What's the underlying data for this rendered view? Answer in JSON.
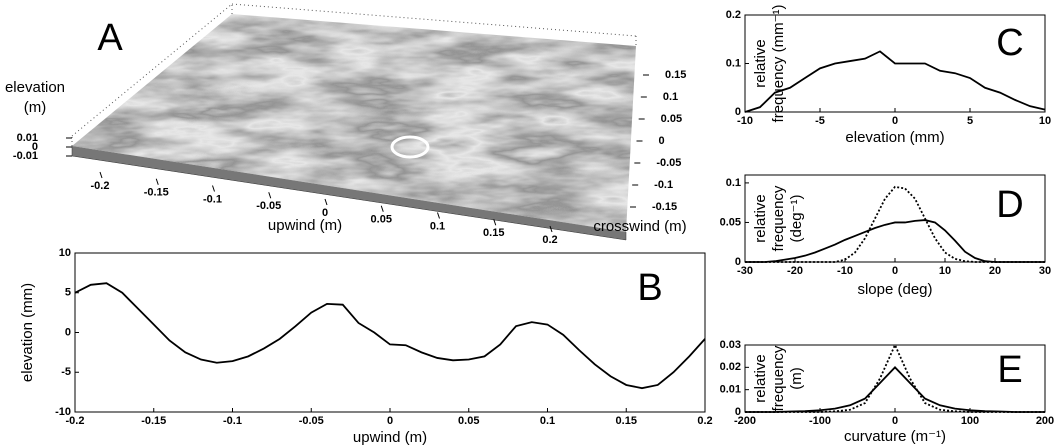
{
  "chart_data": [
    {
      "type": "surface3d",
      "label": "A",
      "xlabel": "upwind (m)",
      "ylabel": "crosswind (m)",
      "zlabel": [
        "elevation",
        "(m)"
      ],
      "xticks": [
        -0.2,
        -0.15,
        -0.1,
        -0.05,
        0,
        0.05,
        0.1,
        0.15,
        0.2
      ],
      "yticks": [
        -0.15,
        -0.1,
        -0.05,
        0,
        0.05,
        0.1,
        0.15
      ],
      "zticks": [
        -0.01,
        0,
        0.01
      ]
    },
    {
      "type": "line",
      "label": "B",
      "xlabel": "upwind (m)",
      "ylabel": "elevation (mm)",
      "xlim": [
        -0.2,
        0.2
      ],
      "xticks": [
        -0.2,
        -0.15,
        -0.1,
        -0.05,
        0,
        0.05,
        0.1,
        0.15,
        0.2
      ],
      "ylim": [
        -10,
        10
      ],
      "yticks": [
        -10,
        -5,
        0,
        5,
        10
      ],
      "x": [
        -0.2,
        -0.19,
        -0.18,
        -0.17,
        -0.16,
        -0.15,
        -0.14,
        -0.13,
        -0.12,
        -0.11,
        -0.1,
        -0.09,
        -0.08,
        -0.07,
        -0.06,
        -0.05,
        -0.04,
        -0.03,
        -0.02,
        -0.01,
        0,
        0.01,
        0.02,
        0.03,
        0.04,
        0.05,
        0.06,
        0.07,
        0.08,
        0.09,
        0.1,
        0.11,
        0.12,
        0.13,
        0.14,
        0.15,
        0.16,
        0.17,
        0.18,
        0.19,
        0.2
      ],
      "series": [
        {
          "color": "#000000",
          "dash": "solid",
          "values": [
            5,
            6,
            6.2,
            5,
            3,
            1,
            -1,
            -2.5,
            -3.4,
            -3.8,
            -3.6,
            -3,
            -2,
            -0.8,
            0.8,
            2.5,
            3.6,
            3.5,
            1.2,
            0,
            -1.5,
            -1.6,
            -2.5,
            -3.2,
            -3.5,
            -3.4,
            -3,
            -1.5,
            0.8,
            1.3,
            1,
            -0.3,
            -2.2,
            -4,
            -5.5,
            -6.6,
            -7,
            -6.6,
            -5,
            -3,
            -0.8
          ]
        }
      ]
    },
    {
      "type": "line",
      "label": "C",
      "xlabel": "elevation (mm)",
      "ylabel": [
        "relative",
        "frequency (mm⁻¹)"
      ],
      "xlim": [
        -10,
        10
      ],
      "xticks": [
        -10,
        -5,
        0,
        5,
        10
      ],
      "ylim": [
        0,
        0.2
      ],
      "yticks": [
        0,
        0.1,
        0.2
      ],
      "x": [
        -10,
        -9,
        -8,
        -7,
        -6,
        -5,
        -4,
        -3,
        -2,
        -1,
        0,
        1,
        2,
        3,
        4,
        5,
        6,
        7,
        8,
        9,
        10
      ],
      "series": [
        {
          "color": "#000000",
          "dash": "solid",
          "values": [
            0,
            0.01,
            0.04,
            0.05,
            0.07,
            0.09,
            0.1,
            0.105,
            0.11,
            0.125,
            0.1,
            0.1,
            0.1,
            0.085,
            0.08,
            0.07,
            0.05,
            0.04,
            0.025,
            0.012,
            0.005
          ]
        }
      ]
    },
    {
      "type": "line",
      "label": "D",
      "xlabel": "slope (deg)",
      "ylabel": [
        "relative",
        "frequency",
        "(deg⁻¹)"
      ],
      "xlim": [
        -30,
        30
      ],
      "xticks": [
        -30,
        -20,
        -10,
        0,
        10,
        20,
        30
      ],
      "ylim": [
        0,
        0.11
      ],
      "yticks": [
        0,
        0.05,
        0.1
      ],
      "x": [
        -30,
        -28,
        -26,
        -24,
        -22,
        -20,
        -18,
        -16,
        -14,
        -12,
        -10,
        -8,
        -6,
        -4,
        -2,
        0,
        2,
        4,
        6,
        8,
        10,
        12,
        14,
        16,
        18,
        20,
        22,
        24,
        26,
        28,
        30
      ],
      "series": [
        {
          "color": "#000000",
          "dash": "solid",
          "values": [
            0,
            0,
            0,
            0.001,
            0.003,
            0.005,
            0.008,
            0.012,
            0.017,
            0.022,
            0.028,
            0.033,
            0.038,
            0.043,
            0.047,
            0.05,
            0.05,
            0.052,
            0.053,
            0.05,
            0.04,
            0.027,
            0.013,
            0.005,
            0.001,
            0,
            0,
            0,
            0,
            0,
            0
          ]
        },
        {
          "color": "#000000",
          "dash": "dotted",
          "values": [
            0,
            0,
            0,
            0,
            0,
            0,
            0,
            0,
            0,
            0,
            0.003,
            0.012,
            0.03,
            0.055,
            0.08,
            0.095,
            0.093,
            0.08,
            0.055,
            0.03,
            0.012,
            0.004,
            0.001,
            0,
            0,
            0,
            0,
            0,
            0,
            0,
            0
          ]
        }
      ]
    },
    {
      "type": "line",
      "label": "E",
      "xlabel": "curvature (m⁻¹)",
      "ylabel": [
        "relative",
        "frequency",
        "(m)"
      ],
      "xlim": [
        -200,
        200
      ],
      "xticks": [
        -200,
        -100,
        0,
        100,
        200
      ],
      "ylim": [
        0,
        0.03
      ],
      "yticks": [
        0,
        0.01,
        0.02,
        0.03
      ],
      "x": [
        -200,
        -180,
        -160,
        -140,
        -120,
        -100,
        -80,
        -60,
        -40,
        -20,
        0,
        20,
        40,
        60,
        80,
        100,
        120,
        140,
        160,
        180,
        200
      ],
      "series": [
        {
          "color": "#000000",
          "dash": "solid",
          "values": [
            0,
            0,
            0,
            0.0002,
            0.0004,
            0.0008,
            0.0015,
            0.003,
            0.006,
            0.013,
            0.02,
            0.013,
            0.006,
            0.003,
            0.0015,
            0.0008,
            0.0004,
            0.0002,
            0,
            0,
            0
          ]
        },
        {
          "color": "#000000",
          "dash": "dotted",
          "values": [
            0,
            0,
            0,
            0,
            0,
            0,
            0.0003,
            0.001,
            0.004,
            0.015,
            0.03,
            0.015,
            0.004,
            0.001,
            0.0003,
            0,
            0,
            0,
            0,
            0,
            0
          ]
        }
      ]
    }
  ]
}
